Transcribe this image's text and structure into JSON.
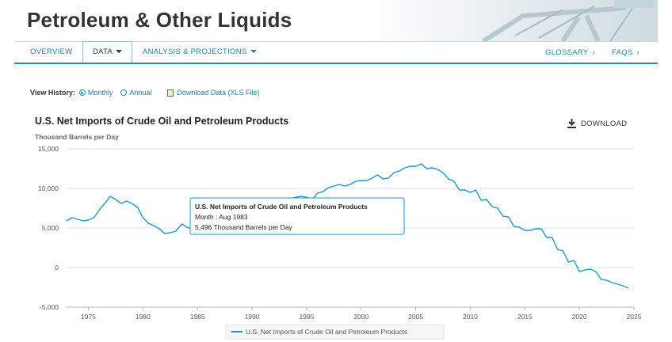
{
  "site": {
    "title": "Petroleum & Other Liquids"
  },
  "nav": {
    "overview": "OVERVIEW",
    "data": "DATA",
    "analysis": "ANALYSIS & PROJECTIONS",
    "glossary": "GLOSSARY",
    "faqs": "FAQS",
    "chevron": "›"
  },
  "view_history": {
    "label": "View History:",
    "monthly": "Monthly",
    "annual": "Annual",
    "selected": "Monthly",
    "download_xls": "Download Data (XLS File)"
  },
  "chart_header": {
    "title": "U.S. Net Imports of Crude Oil and Petroleum Products",
    "unit": "Thousand Barrels per Day",
    "download": "DOWNLOAD"
  },
  "tooltip": {
    "title": "U.S. Net Imports of Crude Oil and Petroleum Products",
    "month_line": "Month : Aug 1983",
    "value_line": "5,496 Thousand Barrels per Day"
  },
  "colors": {
    "series": "#1f98c4",
    "accent": "#1f8fb8"
  },
  "chart_data": {
    "type": "line",
    "title": "U.S. Net Imports of Crude Oil and Petroleum Products",
    "ylabel": "Thousand Barrels per Day",
    "xlabel": "",
    "ylim": [
      -5000,
      15000
    ],
    "xlim": [
      1973,
      2025
    ],
    "y_ticks": [
      "15,000",
      "10,000",
      "5,000",
      "0",
      "-5,000"
    ],
    "y_tick_values": [
      15000,
      10000,
      5000,
      0,
      -5000
    ],
    "x_ticks": [
      "1975",
      "1980",
      "1985",
      "1990",
      "1995",
      "2000",
      "2005",
      "2010",
      "2015",
      "2020",
      "2025"
    ],
    "x_tick_values": [
      1975,
      1980,
      1985,
      1990,
      1995,
      2000,
      2005,
      2010,
      2015,
      2020,
      2025
    ],
    "grid": true,
    "legend_position": "bottom",
    "series": [
      {
        "name": "U.S. Net Imports of Crude Oil and Petroleum Products",
        "x": [
          1973.0,
          1973.5,
          1974.0,
          1974.5,
          1975.0,
          1975.5,
          1976.0,
          1976.5,
          1977.0,
          1977.5,
          1978.0,
          1978.5,
          1979.0,
          1979.5,
          1980.0,
          1980.5,
          1981.0,
          1981.5,
          1982.0,
          1982.5,
          1983.0,
          1983.5,
          1983.6,
          1984.0,
          1984.5,
          1985.0,
          1985.5,
          1986.0,
          1986.5,
          1987.0,
          1987.5,
          1988.0,
          1988.5,
          1989.0,
          1989.5,
          1990.0,
          1990.5,
          1991.0,
          1991.5,
          1992.0,
          1992.5,
          1993.0,
          1993.5,
          1994.0,
          1994.5,
          1995.0,
          1995.5,
          1996.0,
          1996.5,
          1997.0,
          1997.5,
          1998.0,
          1998.5,
          1999.0,
          1999.5,
          2000.0,
          2000.5,
          2001.0,
          2001.5,
          2002.0,
          2002.5,
          2003.0,
          2003.5,
          2004.0,
          2004.5,
          2005.0,
          2005.5,
          2006.0,
          2006.5,
          2007.0,
          2007.5,
          2008.0,
          2008.5,
          2009.0,
          2009.5,
          2010.0,
          2010.5,
          2011.0,
          2011.5,
          2012.0,
          2012.5,
          2013.0,
          2013.5,
          2014.0,
          2014.5,
          2015.0,
          2015.5,
          2016.0,
          2016.5,
          2017.0,
          2017.5,
          2018.0,
          2018.5,
          2019.0,
          2019.5,
          2020.0,
          2020.5,
          2021.0,
          2021.5,
          2022.0,
          2022.5,
          2023.0,
          2023.5,
          2024.0,
          2024.5
        ],
        "values": [
          5900,
          6300,
          6100,
          5900,
          6000,
          6300,
          7300,
          8100,
          9000,
          8600,
          8100,
          8400,
          8100,
          7600,
          6300,
          5600,
          5300,
          4900,
          4300,
          4400,
          4600,
          5400,
          5496,
          5100,
          4900,
          4300,
          4800,
          5400,
          6000,
          6300,
          6800,
          7000,
          7400,
          7800,
          8000,
          7800,
          7300,
          7500,
          7400,
          7600,
          7800,
          8500,
          8700,
          8900,
          9000,
          8900,
          8600,
          9400,
          9600,
          10100,
          10300,
          10500,
          10300,
          10500,
          10900,
          11000,
          11000,
          11300,
          11700,
          11200,
          11300,
          12000,
          12200,
          12600,
          12800,
          12800,
          13100,
          12500,
          12600,
          12400,
          12000,
          11200,
          10900,
          9800,
          9800,
          9500,
          9800,
          8500,
          8600,
          7700,
          7500,
          6500,
          6400,
          5200,
          5100,
          4700,
          4700,
          4900,
          4900,
          3800,
          3800,
          2300,
          2100,
          700,
          900,
          -500,
          -300,
          -200,
          -500,
          -1500,
          -1600,
          -1900,
          -2100,
          -2300,
          -2600
        ]
      }
    ]
  }
}
